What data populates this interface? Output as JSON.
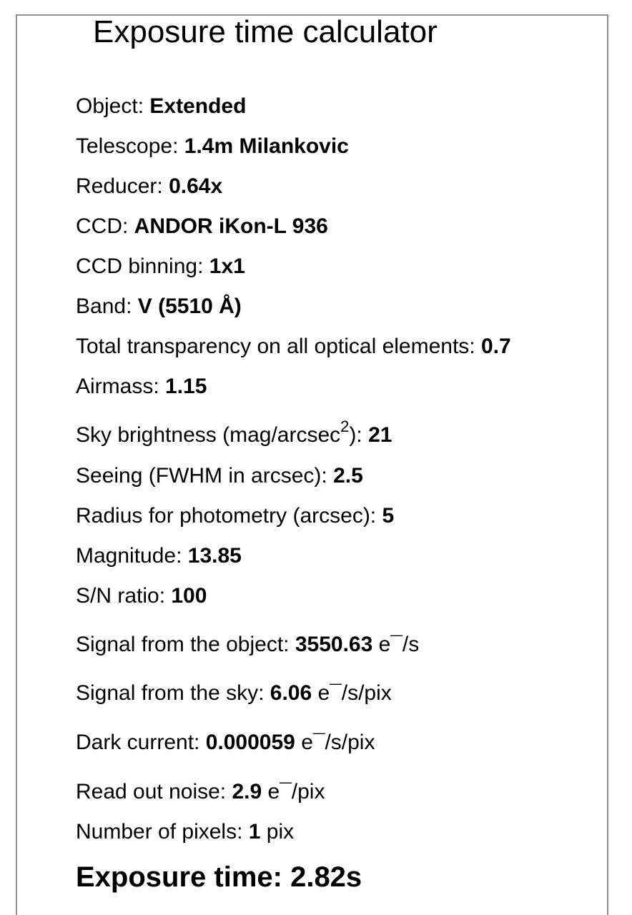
{
  "title": "Exposure time calculator",
  "params": [
    {
      "label": "Object: ",
      "value": "Extended"
    },
    {
      "label": "Telescope: ",
      "value": "1.4m Milankovic"
    },
    {
      "label": "Reducer: ",
      "value": "0.64x"
    },
    {
      "label": "CCD: ",
      "value": "ANDOR iKon-L 936"
    },
    {
      "label": "CCD binning: ",
      "value": "1x1"
    },
    {
      "label": "Band: ",
      "value": "V (5510 Å)"
    },
    {
      "label": "Total transparency on all optical elements: ",
      "value": "0.7"
    },
    {
      "label": "Airmass: ",
      "value": "1.15"
    },
    {
      "label": "Sky brightness (mag/arcsec",
      "label_sup": "2",
      "label_suffix": "): ",
      "value": "21"
    },
    {
      "label": "Seeing (FWHM in arcsec): ",
      "value": "2.5"
    },
    {
      "label": "Radius for photometry (arcsec): ",
      "value": "5"
    },
    {
      "label": "Magnitude: ",
      "value": "13.85"
    },
    {
      "label": "S/N ratio: ",
      "value": "100"
    }
  ],
  "signals": [
    {
      "label": "Signal from the object: ",
      "value": "3550.63",
      "unit": " e¯/s"
    },
    {
      "label": "Signal from the sky: ",
      "value": "6.06",
      "unit": " e¯/s/pix"
    },
    {
      "label": "Dark current: ",
      "value": "0.000059",
      "unit": " e¯/s/pix"
    },
    {
      "label": "Read out noise: ",
      "value": "2.9",
      "unit": " e¯/pix"
    },
    {
      "label": "Number of pixels: ",
      "value": "1",
      "unit": " pix"
    }
  ],
  "result": {
    "label": "Exposure time: ",
    "value": "2.82s"
  }
}
